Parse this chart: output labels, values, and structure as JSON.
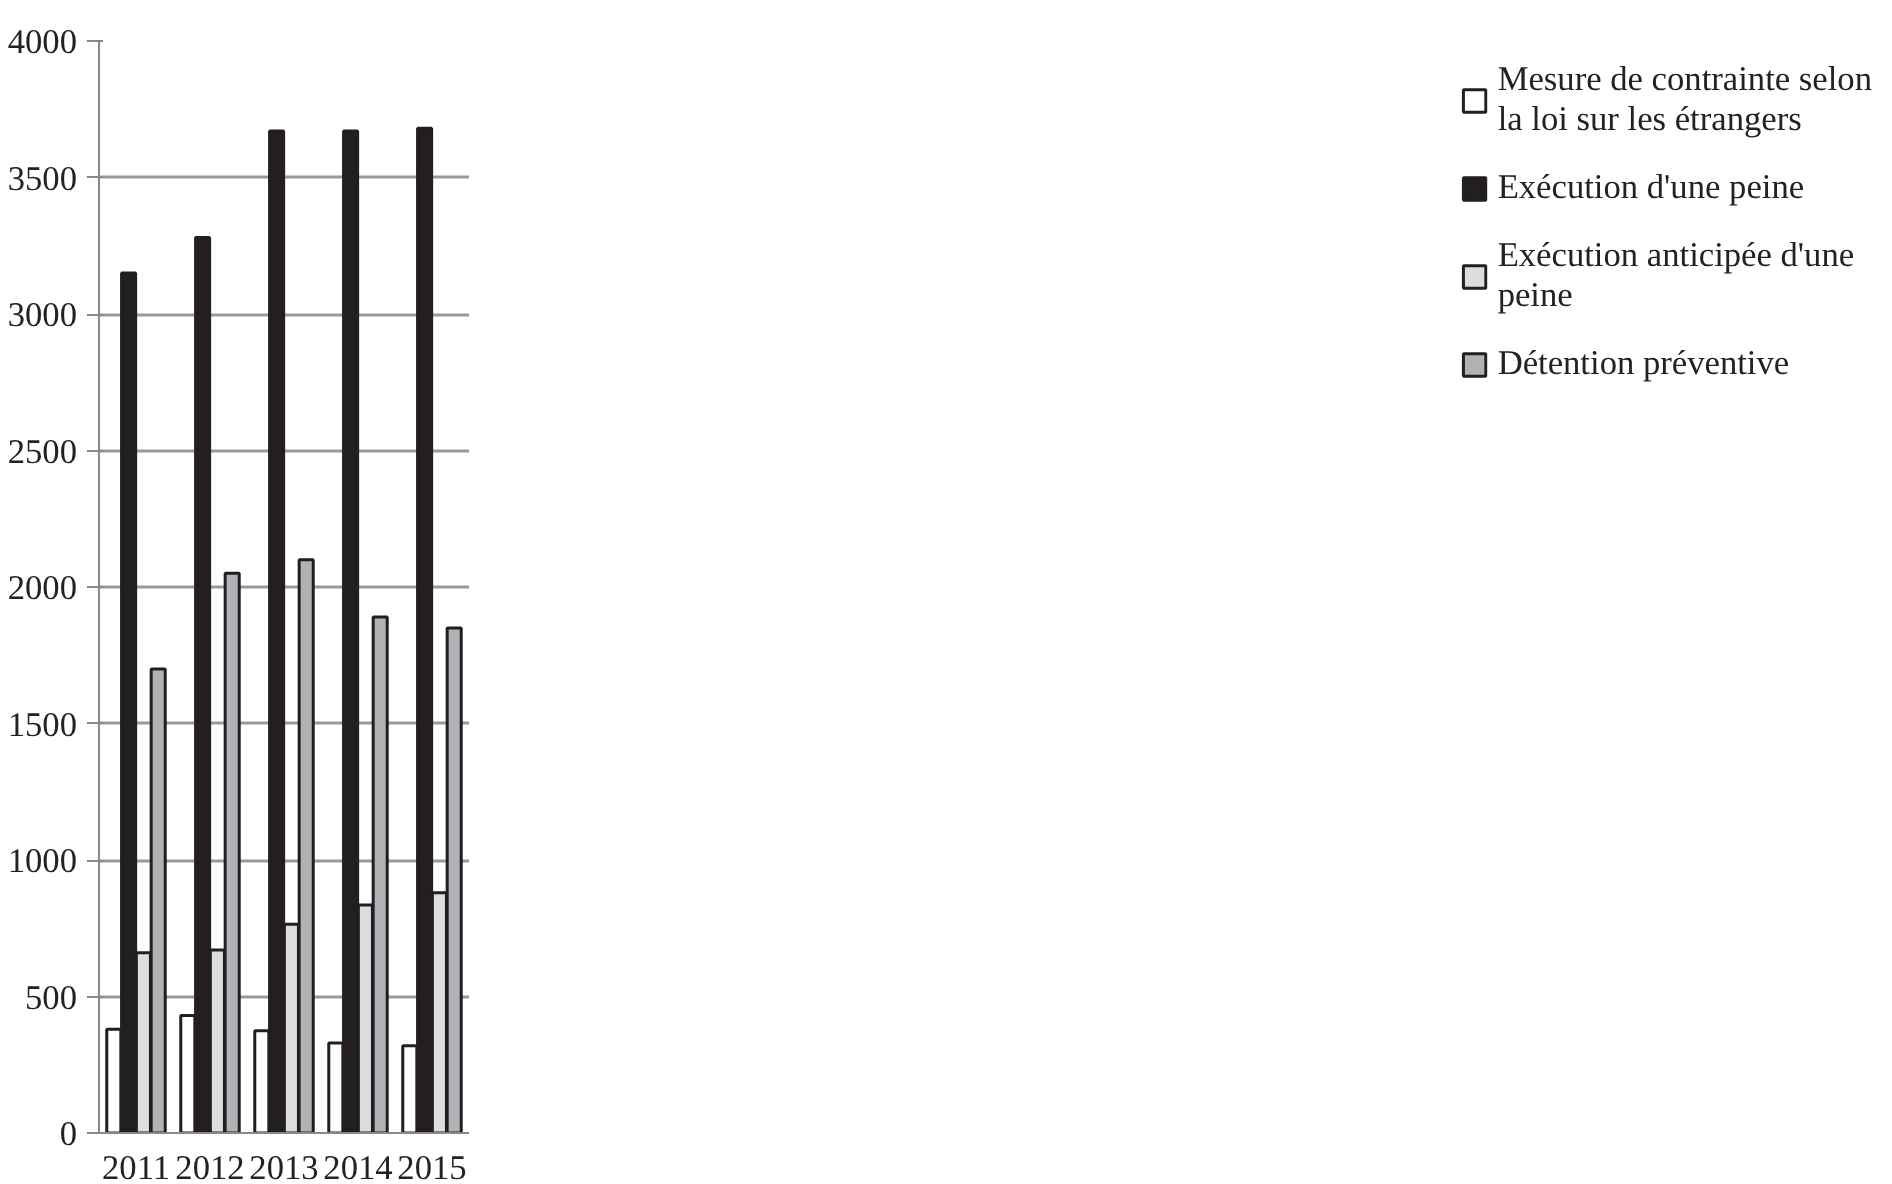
{
  "chart_data": {
    "type": "bar",
    "categories": [
      "2011",
      "2012",
      "2013",
      "2014",
      "2015"
    ],
    "series": [
      {
        "name": "Mesure de contrainte selon la loi sur les étrangers",
        "color": "#ffffff",
        "values": [
          380,
          430,
          375,
          330,
          320
        ]
      },
      {
        "name": "Exécution d'une peine",
        "color": "#231f20",
        "values": [
          3150,
          3280,
          3670,
          3670,
          3680
        ]
      },
      {
        "name": "Exécution anticipée d'une peine",
        "color": "#dcdddf",
        "values": [
          660,
          670,
          765,
          835,
          880
        ]
      },
      {
        "name": "Détention préventive",
        "color": "#b1b2b5",
        "values": [
          1700,
          2050,
          2100,
          1890,
          1850
        ]
      }
    ],
    "ylim": [
      0,
      4000
    ],
    "yticks": [
      0,
      500,
      1000,
      1500,
      2000,
      2500,
      3000,
      3500,
      4000
    ],
    "grid": "y",
    "legend": "right"
  }
}
